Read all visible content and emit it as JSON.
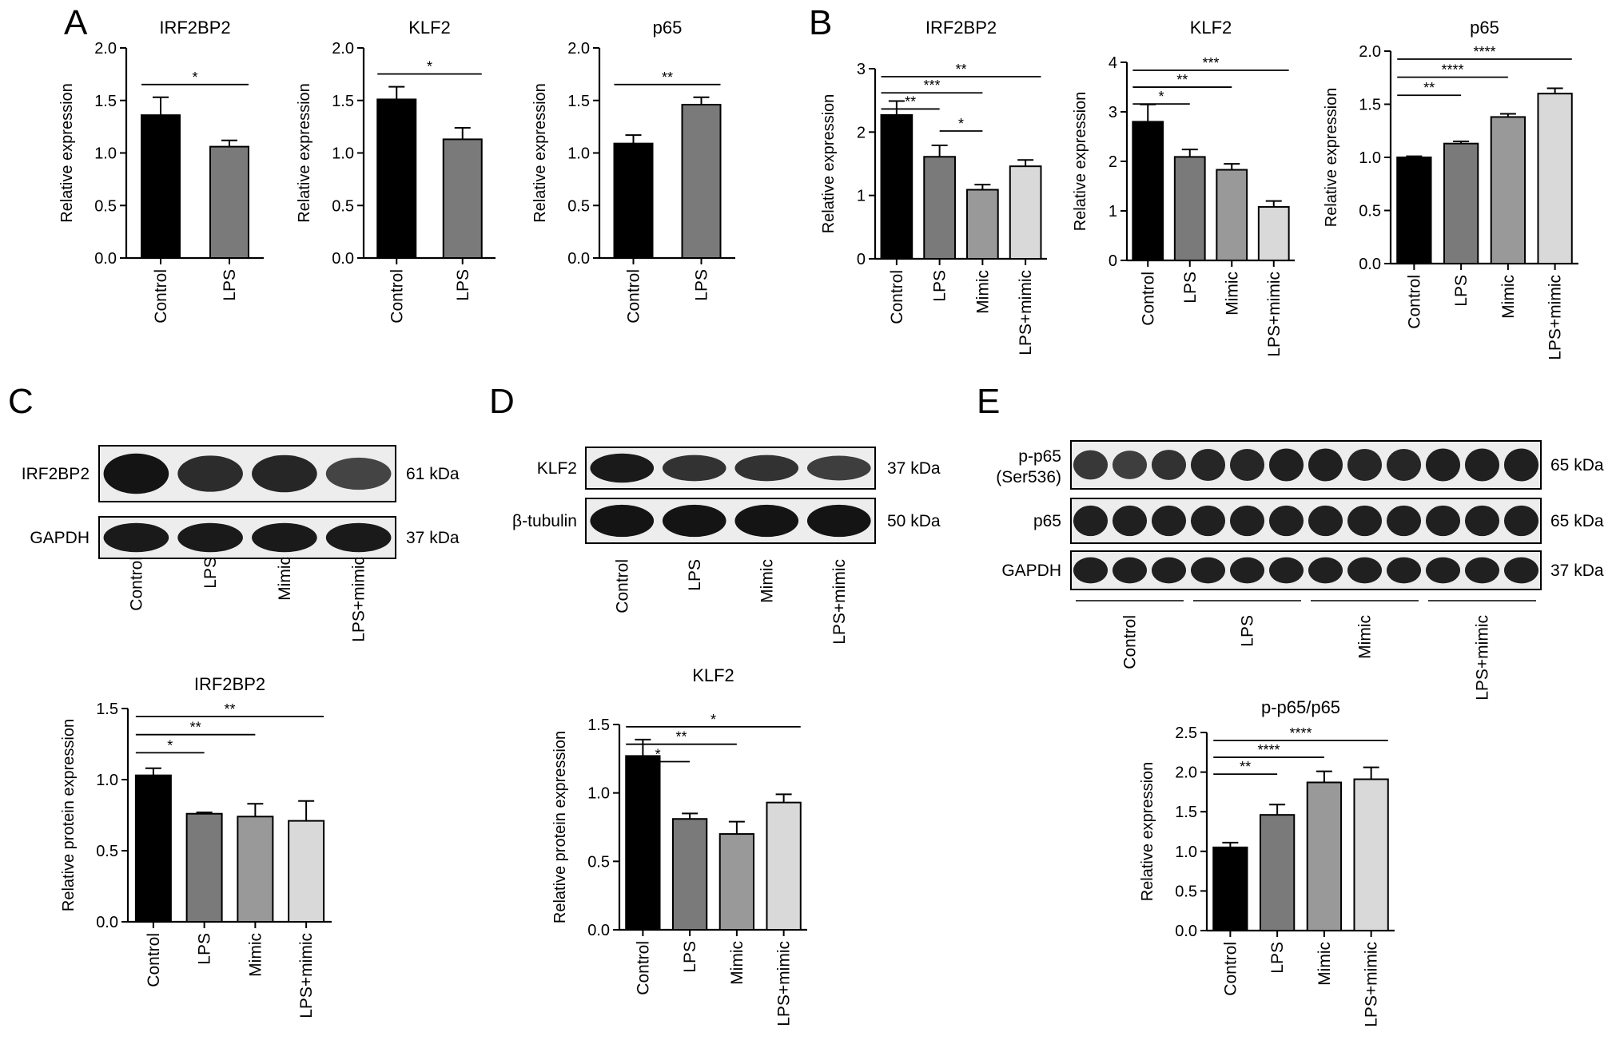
{
  "panel_letters": [
    "A",
    "B",
    "C",
    "D",
    "E"
  ],
  "colors": {
    "black": "#000000",
    "dark_gray": "#7a7a7a",
    "mid_gray": "#999999",
    "light_gray": "#d9d9d9",
    "axis": "#000000"
  },
  "chart_data": [
    {
      "panel": "A",
      "type": "bar",
      "title": "IRF2BP2",
      "ylabel": "Relative expression",
      "categories": [
        "Control",
        "LPS"
      ],
      "values": [
        1.36,
        1.06
      ],
      "errors": [
        0.17,
        0.06
      ],
      "ylim": [
        0,
        2.0
      ],
      "yticks": [
        "0.0",
        "0.5",
        "1.0",
        "1.5",
        "2.0"
      ],
      "significance": [
        {
          "from": "Control",
          "to": "LPS",
          "label": "*"
        }
      ]
    },
    {
      "panel": "A",
      "type": "bar",
      "title": "KLF2",
      "ylabel": "Relative expression",
      "categories": [
        "Control",
        "LPS"
      ],
      "values": [
        1.51,
        1.13
      ],
      "errors": [
        0.12,
        0.11
      ],
      "ylim": [
        0,
        2.0
      ],
      "yticks": [
        "0.0",
        "0.5",
        "1.0",
        "1.5",
        "2.0"
      ],
      "significance": [
        {
          "from": "Control",
          "to": "LPS",
          "label": "*"
        }
      ]
    },
    {
      "panel": "A",
      "type": "bar",
      "title": "p65",
      "ylabel": "Relative expression",
      "categories": [
        "Control",
        "LPS"
      ],
      "values": [
        1.09,
        1.46
      ],
      "errors": [
        0.08,
        0.07
      ],
      "ylim": [
        0,
        2.0
      ],
      "yticks": [
        "0.0",
        "0.5",
        "1.0",
        "1.5",
        "2.0"
      ],
      "significance": [
        {
          "from": "Control",
          "to": "LPS",
          "label": "**"
        }
      ]
    },
    {
      "panel": "B",
      "type": "bar",
      "title": "IRF2BP2",
      "ylabel": "Relative expression",
      "categories": [
        "Control",
        "LPS",
        "Mimic",
        "LPS+mimic"
      ],
      "values": [
        2.27,
        1.61,
        1.09,
        1.46
      ],
      "errors": [
        0.22,
        0.18,
        0.08,
        0.1
      ],
      "ylim": [
        0,
        3
      ],
      "yticks": [
        "0",
        "1",
        "2",
        "3"
      ],
      "significance": [
        {
          "from": "Control",
          "to": "LPS",
          "label": "**"
        },
        {
          "from": "Control",
          "to": "Mimic",
          "label": "***"
        },
        {
          "from": "Control",
          "to": "LPS+mimic",
          "label": "**"
        },
        {
          "from": "LPS",
          "to": "Mimic",
          "label": "*"
        }
      ]
    },
    {
      "panel": "B",
      "type": "bar",
      "title": "KLF2",
      "ylabel": "Relative expression",
      "categories": [
        "Control",
        "LPS",
        "Mimic",
        "LPS+mimic"
      ],
      "values": [
        2.8,
        2.09,
        1.83,
        1.08
      ],
      "errors": [
        0.35,
        0.15,
        0.12,
        0.12
      ],
      "ylim": [
        0,
        4
      ],
      "yticks": [
        "0",
        "1",
        "2",
        "3",
        "4"
      ],
      "significance": [
        {
          "from": "Control",
          "to": "LPS",
          "label": "*"
        },
        {
          "from": "Control",
          "to": "Mimic",
          "label": "**"
        },
        {
          "from": "Control",
          "to": "LPS+mimic",
          "label": "***"
        }
      ]
    },
    {
      "panel": "B",
      "type": "bar",
      "title": "p65",
      "ylabel": "Relative expression",
      "categories": [
        "Control",
        "LPS",
        "Mimic",
        "LPS+mimic"
      ],
      "values": [
        1.0,
        1.13,
        1.38,
        1.6
      ],
      "errors": [
        0.01,
        0.02,
        0.03,
        0.05
      ],
      "ylim": [
        0,
        2.0
      ],
      "yticks": [
        "0.0",
        "0.5",
        "1.0",
        "1.5",
        "2.0"
      ],
      "significance": [
        {
          "from": "Control",
          "to": "LPS",
          "label": "**"
        },
        {
          "from": "Control",
          "to": "Mimic",
          "label": "****"
        },
        {
          "from": "Control",
          "to": "LPS+mimic",
          "label": "****"
        }
      ]
    },
    {
      "panel": "C",
      "type": "bar",
      "title": "IRF2BP2",
      "ylabel": "Relative protein expression",
      "categories": [
        "Control",
        "LPS",
        "Mimic",
        "LPS+mimic"
      ],
      "values": [
        1.03,
        0.76,
        0.74,
        0.71
      ],
      "errors": [
        0.05,
        0.01,
        0.09,
        0.14
      ],
      "ylim": [
        0,
        1.5
      ],
      "yticks": [
        "0.0",
        "0.5",
        "1.0",
        "1.5"
      ],
      "significance": [
        {
          "from": "Control",
          "to": "LPS",
          "label": "*"
        },
        {
          "from": "Control",
          "to": "Mimic",
          "label": "**"
        },
        {
          "from": "Control",
          "to": "LPS+mimic",
          "label": "**"
        }
      ]
    },
    {
      "panel": "D",
      "type": "bar",
      "title": "KLF2",
      "ylabel": "Relative protein expression",
      "categories": [
        "Control",
        "LPS",
        "Mimic",
        "LPS+mimic"
      ],
      "values": [
        1.27,
        0.81,
        0.7,
        0.93
      ],
      "errors": [
        0.12,
        0.04,
        0.09,
        0.06
      ],
      "ylim": [
        0,
        1.5
      ],
      "yticks": [
        "0.0",
        "0.5",
        "1.0",
        "1.5"
      ],
      "significance": [
        {
          "from": "Control",
          "to": "LPS",
          "label": "*"
        },
        {
          "from": "Control",
          "to": "Mimic",
          "label": "**"
        },
        {
          "from": "Control",
          "to": "LPS+mimic",
          "label": "*"
        }
      ]
    },
    {
      "panel": "E",
      "type": "bar",
      "title": "p-p65/p65",
      "ylabel": "Relative expression",
      "categories": [
        "Control",
        "LPS",
        "Mimic",
        "LPS+mimic"
      ],
      "values": [
        1.05,
        1.46,
        1.87,
        1.91
      ],
      "errors": [
        0.06,
        0.13,
        0.14,
        0.15
      ],
      "ylim": [
        0,
        2.5
      ],
      "yticks": [
        "0.0",
        "0.5",
        "1.0",
        "1.5",
        "2.0",
        "2.5"
      ],
      "significance": [
        {
          "from": "Control",
          "to": "LPS",
          "label": "**"
        },
        {
          "from": "Control",
          "to": "Mimic",
          "label": "****"
        },
        {
          "from": "Control",
          "to": "LPS+mimic",
          "label": "****"
        }
      ]
    }
  ],
  "blots": [
    {
      "panel": "C",
      "rows": [
        {
          "protein": "IRF2BP2",
          "size": "61 kDa",
          "intensity": [
            1.0,
            0.8,
            0.85,
            0.6
          ]
        },
        {
          "protein": "GAPDH",
          "size": "37 kDa",
          "intensity": [
            0.95,
            0.95,
            0.95,
            0.95
          ]
        }
      ],
      "lanes": [
        "Control",
        "LPS",
        "Mimic",
        "LPS+mimic"
      ]
    },
    {
      "panel": "D",
      "rows": [
        {
          "protein": "KLF2",
          "size": "37 kDa",
          "intensity": [
            0.95,
            0.75,
            0.75,
            0.65
          ]
        },
        {
          "protein": "β-tubulin",
          "size": "50 kDa",
          "intensity": [
            1.0,
            1.0,
            1.0,
            1.0
          ]
        }
      ],
      "lanes": [
        "Control",
        "LPS",
        "Mimic",
        "LPS+mimic"
      ]
    },
    {
      "panel": "E",
      "rows": [
        {
          "protein": "p-p65",
          "protein_line2": "(Ser536)",
          "size": "65 kDa",
          "intensity": [
            0.7,
            0.65,
            0.75,
            0.85,
            0.85,
            0.9,
            0.9,
            0.85,
            0.85,
            0.9,
            0.9,
            0.9
          ]
        },
        {
          "protein": "p65",
          "size": "65 kDa",
          "intensity": [
            0.9,
            0.9,
            0.9,
            0.9,
            0.9,
            0.9,
            0.9,
            0.9,
            0.9,
            0.9,
            0.9,
            0.9
          ]
        },
        {
          "protein": "GAPDH",
          "size": "37 kDa",
          "intensity": [
            0.9,
            0.9,
            0.9,
            0.9,
            0.9,
            0.9,
            0.9,
            0.9,
            0.9,
            0.9,
            0.9,
            0.9
          ]
        }
      ],
      "lanes": [
        "Control",
        "LPS",
        "Mimic",
        "LPS+mimic"
      ],
      "lanes_per_group": 3
    }
  ]
}
